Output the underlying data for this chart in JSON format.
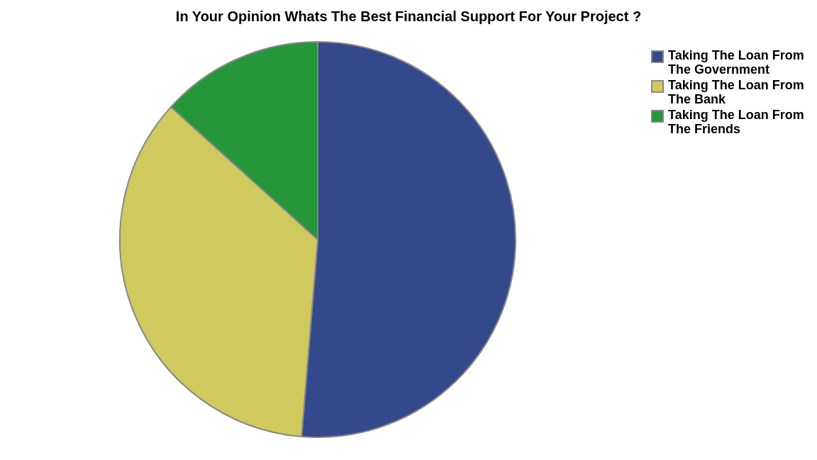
{
  "chart_data": {
    "type": "pie",
    "title": "In Your Opinion Whats The Best Financial Support For Your Project ?",
    "categories": [
      "Taking The Loan From The Government",
      "Taking The Loan From The Bank",
      "Taking The Loan From The Friends"
    ],
    "values": [
      51.3,
      35.4,
      13.3
    ],
    "colors": [
      "#34488c",
      "#cfc95e",
      "#26963a"
    ],
    "legend": "top right"
  }
}
